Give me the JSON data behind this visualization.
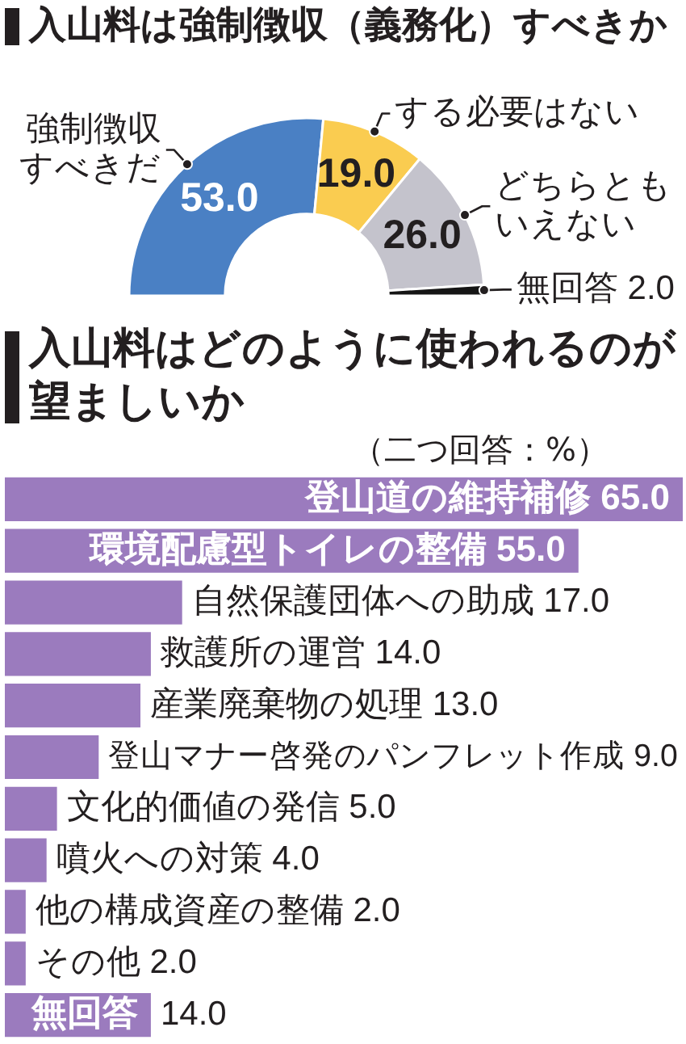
{
  "chart_data": [
    {
      "type": "donut",
      "title": "入山料は強制徴収（義務化）すべきか",
      "categories": [
        "強制徴収すべきだ",
        "する必要はない",
        "どちらともいえない",
        "無回答"
      ],
      "values": [
        53.0,
        19.0,
        26.0,
        2.0
      ],
      "colors": [
        "#4a80c4",
        "#facc50",
        "#c4c3cc",
        "#151515"
      ],
      "value_labels": [
        "53.0",
        "19.0",
        "26.0",
        "2.0"
      ]
    },
    {
      "type": "bar",
      "orientation": "horizontal",
      "title": "入山料はどのように使われるのが望ましいか",
      "subtitle": "（二つ回答：%）",
      "categories": [
        "登山道の維持補修",
        "環境配慮型トイレの整備",
        "自然保護団体への助成",
        "救護所の運営",
        "産業廃棄物の処理",
        "登山マナー啓発のパンフレット作成",
        "文化的価値の発信",
        "噴火への対策",
        "他の構成資産の整備",
        "その他",
        "無回答"
      ],
      "values": [
        65.0,
        55.0,
        17.0,
        14.0,
        13.0,
        9.0,
        5.0,
        4.0,
        2.0,
        2.0,
        14.0
      ],
      "color": "#9b7bbe",
      "value_labels": [
        "65.0",
        "55.0",
        "17.0",
        "14.0",
        "13.0",
        "9.0",
        "5.0",
        "4.0",
        "2.0",
        "2.0",
        "14.0"
      ],
      "tick_labels": "y"
    }
  ]
}
